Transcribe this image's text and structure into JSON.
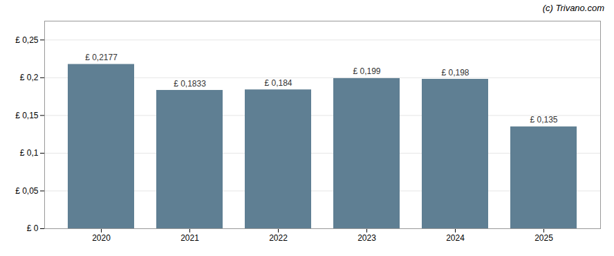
{
  "chart_data": {
    "type": "bar",
    "categories": [
      "2020",
      "2021",
      "2022",
      "2023",
      "2024",
      "2025"
    ],
    "values": [
      0.2177,
      0.1833,
      0.184,
      0.199,
      0.198,
      0.135
    ],
    "value_labels": [
      "£ 0,2177",
      "£ 0,1833",
      "£ 0,184",
      "£ 0,199",
      "£ 0,198",
      "£ 0,135"
    ],
    "data_labels": true,
    "color": "#5f7f93",
    "ylim": [
      0,
      0.275
    ],
    "yticks": [
      {
        "value": 0,
        "label": "£ 0"
      },
      {
        "value": 0.05,
        "label": "£ 0,05"
      },
      {
        "value": 0.1,
        "label": "£ 0,1"
      },
      {
        "value": 0.15,
        "label": "£ 0,15"
      },
      {
        "value": 0.2,
        "label": "£ 0,2"
      },
      {
        "value": 0.25,
        "label": "£ 0,25"
      }
    ],
    "grid": true,
    "annotations": [
      "(c) Trivano.com"
    ]
  }
}
